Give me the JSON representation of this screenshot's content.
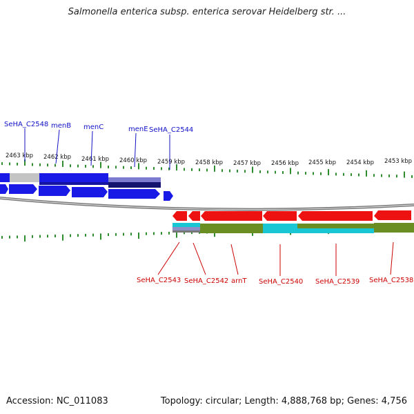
{
  "title": "Salmonella enterica subsp. enterica serovar Heidelberg str. ...",
  "footer": {
    "accession": "Accession: NC_011083",
    "summary": "Topology: circular; Length: 4,888,768 bp; Genes: 4,756"
  },
  "colors": {
    "forward_gene": "#1a1ae6",
    "reverse_gene": "#ee1111",
    "cds_olive": "#6b8e23",
    "cds_cyan": "#19c7d4",
    "backbone": "#888888",
    "tick": "#2e8b2e",
    "blue_label": "#1010c8",
    "red_label": "#cc0000"
  },
  "kbp_labels": [
    "2463 kbp",
    "2462 kbp",
    "2461 kbp",
    "2460 kbp",
    "2459 kbp",
    "2458 kbp",
    "2457 kbp",
    "2456 kbp",
    "2455 kbp",
    "2454 kbp",
    "2453 kbp"
  ],
  "top_genes": [
    "SeHA_C2548",
    "menB",
    "menC",
    "menE",
    "SeHA_C2544"
  ],
  "bottom_genes": [
    "SeHA_C2543",
    "SeHA_C2542",
    "arnT",
    "SeHA_C2540",
    "SeHA_C2539",
    "SeHA_C2538"
  ]
}
